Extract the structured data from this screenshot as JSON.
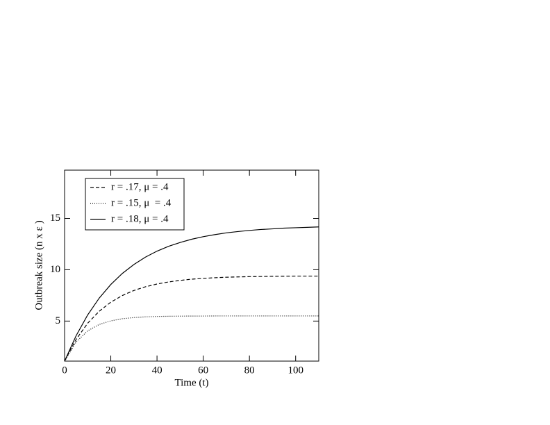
{
  "chart_data": {
    "type": "line",
    "x_label": "Time (t)",
    "y_label": "Outbreak size (n x ε )",
    "x": [
      0,
      5,
      10,
      15,
      20,
      25,
      30,
      35,
      40,
      45,
      50,
      55,
      60,
      65,
      70,
      75,
      80,
      85,
      90,
      95,
      100,
      105,
      110
    ],
    "series": [
      {
        "name": "r = .17, μ = .4",
        "color": "#000000",
        "dash": "dashed",
        "values": [
          1.1,
          3.22,
          4.79,
          5.96,
          6.84,
          7.49,
          7.98,
          8.34,
          8.61,
          8.81,
          8.96,
          9.08,
          9.16,
          9.22,
          9.27,
          9.3,
          9.33,
          9.34,
          9.36,
          9.37,
          9.38,
          9.38,
          9.38
        ]
      },
      {
        "name": "r = .15, μ  = .4",
        "color": "#000000",
        "dash": "dotted",
        "values": [
          1.1,
          2.97,
          4.05,
          4.67,
          5.02,
          5.23,
          5.34,
          5.41,
          5.45,
          5.47,
          5.48,
          5.49,
          5.49,
          5.5,
          5.5,
          5.5,
          5.5,
          5.5,
          5.5,
          5.5,
          5.5,
          5.5,
          5.5
        ]
      },
      {
        "name": "r = .18, μ = .4",
        "color": "#000000",
        "dash": "solid",
        "values": [
          1.1,
          3.58,
          5.6,
          7.24,
          8.56,
          9.64,
          10.51,
          11.23,
          11.81,
          12.28,
          12.65,
          12.97,
          13.22,
          13.42,
          13.59,
          13.72,
          13.83,
          13.92,
          13.98,
          14.05,
          14.09,
          14.13,
          14.17
        ]
      }
    ],
    "xlim": [
      0,
      110
    ],
    "xticks": [
      0,
      20,
      40,
      60,
      80,
      100
    ],
    "ylim": [
      1.1,
      19.7
    ],
    "yticks": [
      5,
      10,
      15
    ],
    "legend": "upper-left",
    "grid": false
  }
}
